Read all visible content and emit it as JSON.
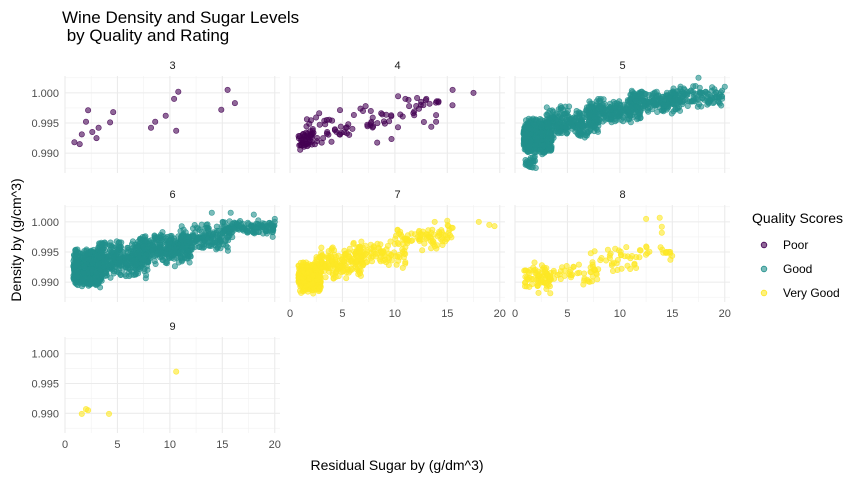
{
  "chart_data": {
    "type": "scatter",
    "title": "Wine Density and Sugar Levels\n by Quality and Rating",
    "xlabel": "Residual Sugar by (g/dm^3)",
    "ylabel": "Density by (g/cm^3)",
    "xlim": [
      0,
      20.5
    ],
    "ylim": [
      0.9867,
      1.0028
    ],
    "x_ticks": [
      0,
      5,
      10,
      15,
      20
    ],
    "y_ticks": [
      0.99,
      0.995,
      1.0
    ],
    "y_tick_labels": [
      "0.990",
      "0.995",
      "1.000"
    ],
    "grid": true,
    "facet_by": "quality",
    "legend": {
      "title": "Quality Scores",
      "position": "right",
      "entries": [
        {
          "label": "Poor",
          "color": "#440154"
        },
        {
          "label": "Good",
          "color": "#21908C"
        },
        {
          "label": "Very Good",
          "color": "#FDE725"
        }
      ]
    },
    "facets": [
      {
        "label": "3",
        "rating": "Poor",
        "points": [
          [
            0.9,
            0.9918
          ],
          [
            1.4,
            0.9915
          ],
          [
            1.6,
            0.9931
          ],
          [
            2.0,
            0.9952
          ],
          [
            2.2,
            0.9971
          ],
          [
            2.6,
            0.9935
          ],
          [
            3.0,
            0.9925
          ],
          [
            3.2,
            0.9942
          ],
          [
            4.3,
            0.9951
          ],
          [
            4.6,
            0.9968
          ],
          [
            8.2,
            0.9942
          ],
          [
            8.6,
            0.9952
          ],
          [
            9.6,
            0.9962
          ],
          [
            10.4,
            0.999
          ],
          [
            10.6,
            0.9937
          ],
          [
            10.8,
            1.0002
          ],
          [
            14.9,
            0.9972
          ],
          [
            15.5,
            1.0005
          ],
          [
            16.2,
            0.9983
          ]
        ]
      },
      {
        "label": "4",
        "rating": "Poor",
        "n": 130,
        "cloud": [
          [
            0.8,
            2.2,
            0.99,
            0.9945,
            40
          ],
          [
            1.0,
            6.0,
            0.9905,
            0.996,
            25
          ],
          [
            2.0,
            10.5,
            0.9915,
            0.9975,
            30
          ],
          [
            6.0,
            14.0,
            0.994,
            0.999,
            20
          ],
          [
            10.0,
            15.5,
            0.997,
            0.9998,
            15
          ]
        ],
        "points": [
          [
            13.0,
            0.999
          ],
          [
            15.5,
            1.0005
          ],
          [
            17.5,
            1.0
          ],
          [
            11.0,
            0.999
          ],
          [
            12.5,
            0.9985
          ]
        ]
      },
      {
        "label": "5",
        "rating": "Good",
        "n": 1300,
        "cloud": [
          [
            0.8,
            3.5,
            0.9895,
            0.996,
            520
          ],
          [
            1.0,
            2.0,
            0.9872,
            0.99,
            25
          ],
          [
            3.0,
            8.0,
            0.992,
            0.998,
            260
          ],
          [
            7.0,
            12.0,
            0.995,
            0.9992,
            220
          ],
          [
            11.0,
            16.0,
            0.9965,
            1.0005,
            200
          ],
          [
            15.0,
            19.8,
            0.9975,
            1.0015,
            110
          ]
        ],
        "points": [
          [
            17.5,
            1.0025
          ],
          [
            20.0,
            1.001
          ]
        ]
      },
      {
        "label": "6",
        "rating": "Good",
        "n": 1600,
        "cloud": [
          [
            0.8,
            3.5,
            0.989,
            0.9955,
            650
          ],
          [
            3.0,
            8.0,
            0.9905,
            0.997,
            360
          ],
          [
            7.0,
            12.0,
            0.9925,
            0.9985,
            300
          ],
          [
            11.0,
            16.0,
            0.995,
            0.9998,
            180
          ],
          [
            15.0,
            20.0,
            0.9975,
            1.0005,
            110
          ]
        ],
        "points": [
          [
            14.0,
            1.0015
          ],
          [
            15.8,
            1.0015
          ],
          [
            18.0,
            1.0012
          ],
          [
            20.0,
            1.0
          ],
          [
            19.8,
            0.9975
          ],
          [
            20.0,
            1.0005
          ]
        ]
      },
      {
        "label": "7",
        "rating": "Very Good",
        "n": 700,
        "cloud": [
          [
            0.8,
            3.0,
            0.988,
            0.9935,
            360
          ],
          [
            2.5,
            7.0,
            0.99,
            0.996,
            160
          ],
          [
            6.0,
            11.0,
            0.992,
            0.9975,
            100
          ],
          [
            10.0,
            15.5,
            0.995,
            1.0,
            80
          ]
        ],
        "points": [
          [
            13.8,
            1.0
          ],
          [
            15.0,
            1.0002
          ],
          [
            15.5,
            0.999
          ],
          [
            18.0,
            1.0
          ],
          [
            19.0,
            0.9995
          ],
          [
            19.5,
            0.9993
          ],
          [
            11.0,
            0.9958
          ]
        ]
      },
      {
        "label": "8",
        "rating": "Very Good",
        "n": 175,
        "cloud": [
          [
            0.8,
            3.5,
            0.988,
            0.9935,
            70
          ],
          [
            3.0,
            8.0,
            0.9895,
            0.9935,
            45
          ],
          [
            7.0,
            12.0,
            0.991,
            0.996,
            35
          ],
          [
            11.0,
            15.0,
            0.993,
            0.9965,
            20
          ]
        ],
        "points": [
          [
            12.5,
            1.0005
          ],
          [
            13.8,
            1.0007
          ],
          [
            14.0,
            0.9992
          ],
          [
            14.0,
            0.9982
          ],
          [
            14.8,
            0.995
          ]
        ]
      },
      {
        "label": "9",
        "rating": "Very Good",
        "points": [
          [
            1.6,
            0.9899
          ],
          [
            2.0,
            0.9907
          ],
          [
            2.2,
            0.9905
          ],
          [
            4.2,
            0.9899
          ],
          [
            10.6,
            0.997
          ]
        ]
      }
    ]
  }
}
